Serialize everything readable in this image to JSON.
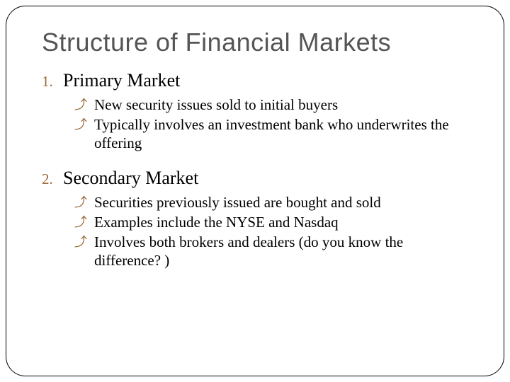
{
  "slide": {
    "title": "Structure of Financial Markets",
    "title_color": "#555555",
    "title_fontsize": 36,
    "frame_border_color": "#000000",
    "frame_border_radius": 28,
    "background_color": "#ffffff",
    "accent_color": "#9b6a3a",
    "body_font": "Georgia, Times New Roman, serif",
    "body_fontsize": 21,
    "heading_fontsize": 26,
    "items": [
      {
        "number": "1.",
        "heading": "Primary Market",
        "bullets": [
          "New security issues sold to initial buyers",
          "Typically involves an investment bank who underwrites the offering"
        ]
      },
      {
        "number": "2.",
        "heading": "Secondary Market",
        "bullets": [
          "Securities previously issued are bought and sold",
          "Examples include the NYSE and Nasdaq",
          "Involves both brokers and dealers (do you know the difference? )"
        ]
      }
    ]
  }
}
